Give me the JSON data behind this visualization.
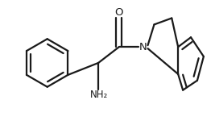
{
  "bg_color": "#ffffff",
  "line_color": "#1a1a1a",
  "line_width": 1.6,
  "figsize": [
    2.67,
    1.5
  ],
  "dpi": 100,
  "xlim": [
    0,
    267
  ],
  "ylim": [
    0,
    150
  ]
}
